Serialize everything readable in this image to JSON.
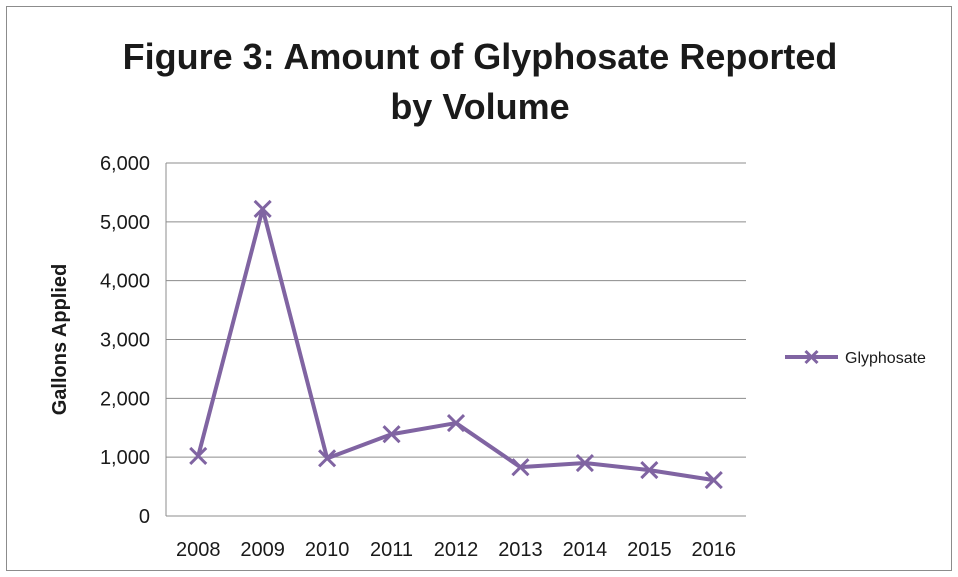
{
  "chart_data": {
    "type": "line",
    "title_lines": [
      "Figure 3: Amount of Glyphosate Reported",
      "by Volume"
    ],
    "xlabel": "",
    "ylabel": "Gallons Applied",
    "categories": [
      "2008",
      "2009",
      "2010",
      "2011",
      "2012",
      "2013",
      "2014",
      "2015",
      "2016"
    ],
    "series": [
      {
        "name": "Glyphosate",
        "values": [
          1020,
          5220,
          980,
          1390,
          1580,
          830,
          900,
          780,
          610
        ],
        "color": "#8064a2",
        "marker": "x"
      }
    ],
    "ylim": [
      0,
      6000
    ],
    "yticks": [
      0,
      1000,
      2000,
      3000,
      4000,
      5000,
      6000
    ],
    "ytick_labels": [
      "0",
      "1,000",
      "2,000",
      "3,000",
      "4,000",
      "5,000",
      "6,000"
    ],
    "grid": true,
    "legend_position": "right"
  }
}
